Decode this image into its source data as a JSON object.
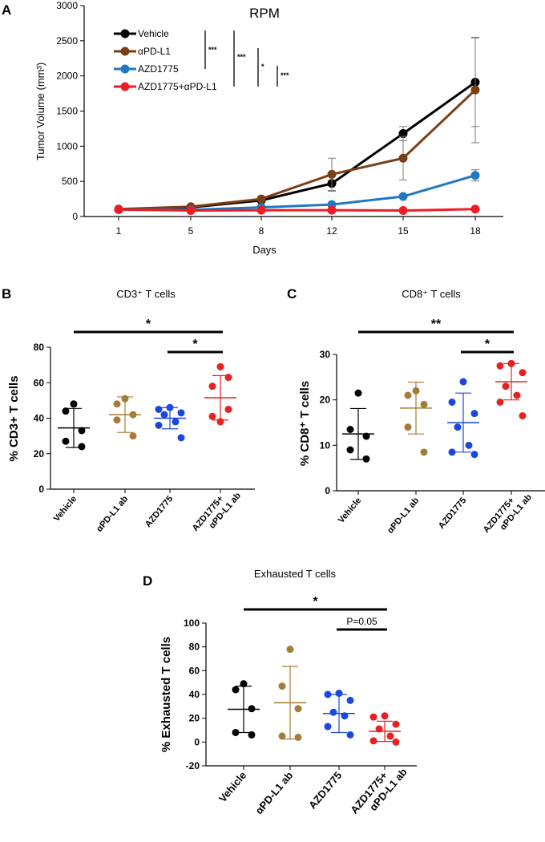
{
  "chart_data": [
    {
      "id": "A",
      "type": "line",
      "panel_label": "A",
      "title": "RPM",
      "xlabel": "Days",
      "ylabel": "Tumor Volume (mm³)",
      "x": [
        "1",
        "5",
        "8",
        "12",
        "15",
        "18"
      ],
      "ylim": [
        0,
        3000
      ],
      "yticks": [
        "0",
        "500",
        "1000",
        "1500",
        "2000",
        "2500",
        "3000"
      ],
      "series": [
        {
          "name": "Vehicle",
          "color": "#000000",
          "values": [
            100,
            130,
            230,
            470,
            1180,
            1910
          ],
          "err": [
            0,
            0,
            0,
            110,
            100,
            630
          ]
        },
        {
          "name": "αPD-L1",
          "color": "#7b3f16",
          "values": [
            105,
            140,
            250,
            600,
            830,
            1800
          ],
          "err": [
            0,
            0,
            0,
            230,
            310,
            750
          ]
        },
        {
          "name": "AZD1775",
          "color": "#1f78c1",
          "values": [
            100,
            95,
            130,
            170,
            285,
            585
          ],
          "err": [
            0,
            0,
            0,
            0,
            0,
            80
          ]
        },
        {
          "name": "AZD1775+αPD-L1",
          "color": "#ee1c24",
          "values": [
            100,
            85,
            90,
            90,
            85,
            105
          ],
          "err": [
            0,
            0,
            0,
            0,
            0,
            0
          ]
        }
      ],
      "annotations": [
        "***",
        "***",
        "*",
        "***"
      ]
    },
    {
      "id": "B",
      "type": "scatter",
      "panel_label": "B",
      "title": "CD3⁺ T cells",
      "ylabel": "% CD3+ T cells",
      "ylim": [
        0,
        80
      ],
      "yticks": [
        "0",
        "20",
        "40",
        "60",
        "80"
      ],
      "categories": [
        "Vehicle",
        "αPD-L1 ab",
        "AZD1775",
        "AZD1775+",
        "αPD-L1 ab"
      ],
      "groups": [
        {
          "color": "#000000",
          "points": [
            48,
            44,
            33,
            27,
            24
          ],
          "mean": 34.5,
          "sd": 11
        },
        {
          "color": "#a57b36",
          "points": [
            51,
            48,
            42,
            39,
            30
          ],
          "mean": 42,
          "sd": 10
        },
        {
          "color": "#1a47e0",
          "points": [
            46,
            45,
            43,
            42,
            38,
            36,
            29
          ],
          "mean": 40,
          "sd": 6
        },
        {
          "color": "#e8201f",
          "points": [
            69,
            63,
            58,
            45,
            41,
            38
          ],
          "mean": 51.5,
          "sd": 12.5
        }
      ],
      "significance": [
        {
          "from": 0,
          "to": 3,
          "label": "*"
        },
        {
          "from": 2,
          "to": 3,
          "label": "*"
        }
      ]
    },
    {
      "id": "C",
      "type": "scatter",
      "panel_label": "C",
      "title": "CD8⁺ T cells",
      "ylabel": "% CD8⁺ T cells",
      "ylim": [
        0,
        30
      ],
      "yticks": [
        "0",
        "10",
        "20",
        "30"
      ],
      "categories": [
        "Vehicle",
        "αPD-L1 ab",
        "AZD1775",
        "AZD1775+",
        "αPD-L1 ab"
      ],
      "groups": [
        {
          "color": "#000000",
          "points": [
            21.5,
            13.5,
            12,
            9,
            7
          ],
          "mean": 12.5,
          "sd": 5.6
        },
        {
          "color": "#a57b36",
          "points": [
            22,
            21,
            19,
            14,
            8.5
          ],
          "mean": 18.2,
          "sd": 5.7
        },
        {
          "color": "#1a47e0",
          "points": [
            24,
            19.5,
            17,
            14,
            10,
            8.5,
            8
          ],
          "mean": 15,
          "sd": 6.5
        },
        {
          "color": "#e8201f",
          "points": [
            28,
            27.5,
            26,
            23,
            21,
            19.5,
            16.5
          ],
          "mean": 24,
          "sd": 4
        }
      ],
      "significance": [
        {
          "from": 0,
          "to": 3,
          "label": "**"
        },
        {
          "from": 2,
          "to": 3,
          "label": "*"
        }
      ]
    },
    {
      "id": "D",
      "type": "scatter",
      "panel_label": "D",
      "title": "Exhausted T cells",
      "ylabel": "% Exhausted T cells",
      "ylim": [
        -20,
        100
      ],
      "yticks": [
        "-20",
        "0",
        "20",
        "40",
        "60",
        "80",
        "100"
      ],
      "categories": [
        "Vehicle",
        "αPD-L1 ab",
        "AZD1775",
        "AZD1775+",
        "αPD-L1 ab"
      ],
      "groups": [
        {
          "color": "#000000",
          "points": [
            49,
            44,
            28,
            8,
            6
          ],
          "mean": 27.5,
          "sd": 19.5
        },
        {
          "color": "#a57b36",
          "points": [
            78,
            47,
            28,
            5,
            4
          ],
          "mean": 33,
          "sd": 30.5
        },
        {
          "color": "#1a47e0",
          "points": [
            41,
            40,
            35,
            25,
            22,
            13,
            6
          ],
          "mean": 24,
          "sd": 16
        },
        {
          "color": "#e8201f",
          "points": [
            22,
            21,
            15,
            11,
            5,
            1,
            0
          ],
          "mean": 9,
          "sd": 8.5
        }
      ],
      "significance": [
        {
          "from": 0,
          "to": 3,
          "label": "*"
        },
        {
          "from": 2,
          "to": 3,
          "label": "P=0.05"
        }
      ]
    }
  ]
}
